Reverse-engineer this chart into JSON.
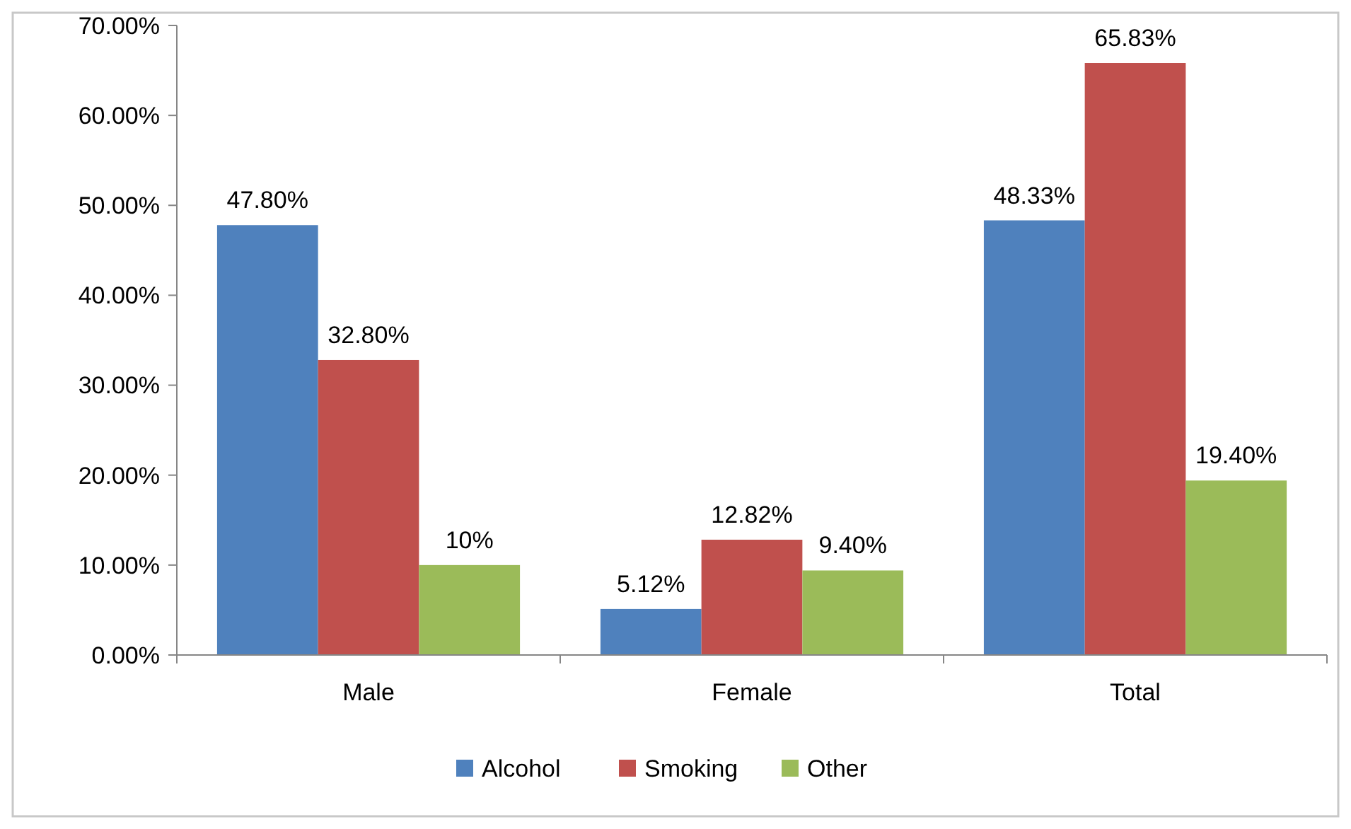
{
  "chart_data": {
    "type": "bar",
    "categories": [
      "Male",
      "Female",
      "Total"
    ],
    "series": [
      {
        "name": "Alcohol",
        "color": "#4f81bd",
        "values": [
          47.8,
          5.12,
          48.33
        ],
        "value_labels": [
          "47.80%",
          "5.12%",
          "48.33%"
        ]
      },
      {
        "name": "Smoking",
        "color": "#c0504d",
        "values": [
          32.8,
          12.82,
          65.83
        ],
        "value_labels": [
          "32.80%",
          "12.82%",
          "65.83%"
        ]
      },
      {
        "name": "Other",
        "color": "#9bbb59",
        "values": [
          10,
          9.4,
          19.4
        ],
        "value_labels": [
          "10%",
          "9.40%",
          "19.40%"
        ]
      }
    ],
    "ylim": [
      0,
      70
    ],
    "yticks": [
      {
        "value": 0,
        "label": "0.00%"
      },
      {
        "value": 10,
        "label": "10.00%"
      },
      {
        "value": 20,
        "label": "20.00%"
      },
      {
        "value": 30,
        "label": "30.00%"
      },
      {
        "value": 40,
        "label": "40.00%"
      },
      {
        "value": 50,
        "label": "50.00%"
      },
      {
        "value": 60,
        "label": "60.00%"
      },
      {
        "value": 70,
        "label": "70.00%"
      }
    ],
    "grid": false,
    "legend": "bottom"
  }
}
